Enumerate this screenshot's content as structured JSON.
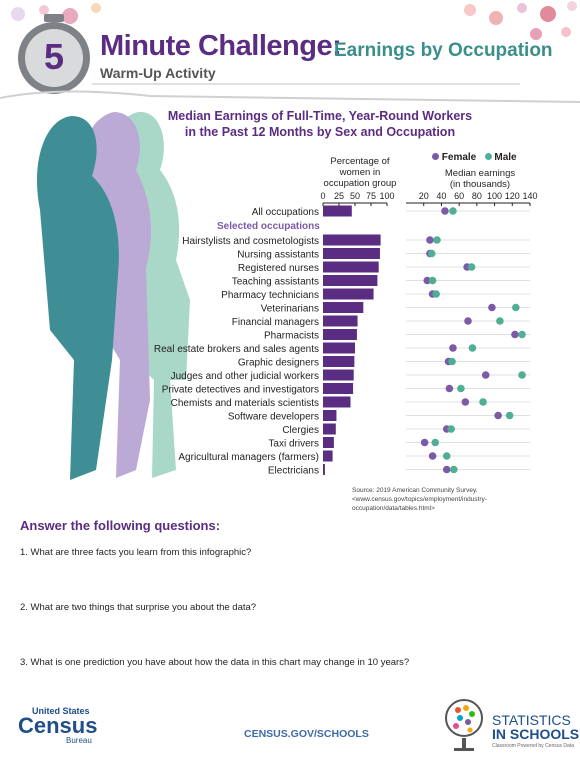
{
  "header": {
    "badge_number": "5",
    "title_main": "Minute Challenge:",
    "title_sub": "Earnings by Occupation",
    "warmup": "Warm-Up Activity"
  },
  "chart_title_line1": "Median Earnings of Full-Time, Year-Round Workers",
  "chart_title_line2": "in the Past 12 Months by Sex and Occupation",
  "chart_data": {
    "type": "bar+dot",
    "bar_axis_title": [
      "Percentage of",
      "women in",
      "occupation group"
    ],
    "bar_ticks": [
      "0",
      "25",
      "50",
      "75",
      "100"
    ],
    "bar_xlim": [
      0,
      100
    ],
    "dot_axis_title": [
      "Median earnings",
      "(in thousands)"
    ],
    "dot_ticks": [
      "20",
      "40",
      "60",
      "80",
      "100",
      "120",
      "140"
    ],
    "dot_xlim": [
      0,
      140
    ],
    "legend": [
      {
        "name": "Female",
        "color": "#7b5aa6"
      },
      {
        "name": "Male",
        "color": "#4fae93"
      }
    ],
    "group_header": "Selected occupations",
    "categories": [
      "All occupations",
      "Hairstylists and cosmetologists",
      "Nursing assistants",
      "Registered nurses",
      "Teaching assistants",
      "Pharmacy technicians",
      "Veterinarians",
      "Financial managers",
      "Pharmacists",
      "Real estate brokers and sales agents",
      "Graphic designers",
      "Judges and other judicial workers",
      "Private detectives and investigators",
      "Chemists and materials scientists",
      "Software developers",
      "Clergies",
      "Taxi drivers",
      "Agricultural managers (farmers)",
      "Electricians"
    ],
    "pct_women": [
      45,
      90,
      89,
      87,
      85,
      79,
      63,
      54,
      53,
      50,
      49,
      48,
      47,
      43,
      21,
      20,
      17,
      15,
      3
    ],
    "female_earnings": [
      44,
      27,
      27,
      69,
      24,
      30,
      97,
      70,
      123,
      53,
      48,
      90,
      49,
      67,
      104,
      46,
      21,
      30,
      46
    ],
    "male_earnings": [
      53,
      35,
      29,
      74,
      30,
      34,
      124,
      106,
      131,
      75,
      52,
      131,
      62,
      87,
      117,
      51,
      33,
      46,
      54
    ],
    "bar_color": "#5b2d82",
    "female_color": "#7b5aa6",
    "male_color": "#4fae93"
  },
  "source": "Source: 2019 American Community Survey. <www.census.gov/topics/employment/industry-occupation/data/tables.html>",
  "questions": {
    "heading": "Answer the following questions:",
    "q1": "1. What are three facts you learn from this infographic?",
    "q2": "2. What are two things that surprise you about the data?",
    "q3": "3. What is one prediction you have about how the data in this chart may change in 10 years?"
  },
  "footer": {
    "census_line1": "United States",
    "census_line2": "Census",
    "census_line3": "Bureau",
    "url": "CENSUS.GOV/SCHOOLS",
    "sis_line1": "STATISTICS",
    "sis_line2": "IN SCHOOLS",
    "sis_tagline": "Classroom Powered by Census Data"
  }
}
